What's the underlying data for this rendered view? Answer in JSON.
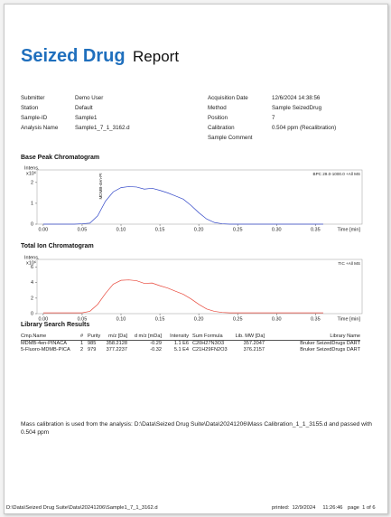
{
  "header": {
    "title_main": "Seized Drug",
    "title_sub": "Report"
  },
  "info": {
    "left": [
      [
        "Submitter",
        "Demo User"
      ],
      [
        "Station",
        "Default"
      ],
      [
        "Sample-ID",
        "Sample1"
      ],
      [
        "Analysis Name",
        "Sample1_7_1_3162.d"
      ]
    ],
    "right": [
      [
        "Acquisition Date",
        "12/6/2024 14:38:56"
      ],
      [
        "Method",
        "Sample SeizedDrug"
      ],
      [
        "Position",
        "7"
      ],
      [
        "Calibration",
        "0.504 ppm (Recalibration)"
      ],
      [
        "Sample Comment"
      ]
    ]
  },
  "chart_data": [
    {
      "type": "line",
      "title": "Base Peak Chromatogram",
      "y_label": "Intens.",
      "y_unit": "x10⁶",
      "x_label": "Time [min]",
      "annotation": "BPC 29.0-1000.0 +All MS",
      "peak_label": "MDMB-4en-PI",
      "color": "#3348c8",
      "x": [
        0,
        0.01,
        0.02,
        0.03,
        0.04,
        0.05,
        0.06,
        0.07,
        0.08,
        0.09,
        0.1,
        0.11,
        0.12,
        0.13,
        0.14,
        0.15,
        0.16,
        0.17,
        0.18,
        0.19,
        0.2,
        0.21,
        0.22,
        0.23,
        0.24,
        0.25,
        0.26,
        0.27,
        0.28,
        0.29,
        0.3,
        0.31,
        0.32,
        0.33,
        0.34,
        0.35,
        0.36
      ],
      "values": [
        0,
        0,
        0,
        0,
        0,
        0.02,
        0.05,
        0.4,
        1.1,
        1.55,
        1.75,
        1.8,
        1.78,
        1.68,
        1.72,
        1.62,
        1.5,
        1.35,
        1.2,
        0.9,
        0.55,
        0.25,
        0.08,
        0.02,
        0,
        0,
        0,
        0,
        0,
        0,
        0,
        0,
        0,
        0,
        0,
        0,
        0
      ],
      "xlim": [
        -0.008,
        0.41
      ],
      "ylim": [
        0,
        2.6
      ],
      "xticks": [
        {
          "value": 0,
          "label": "0.00"
        },
        0.05,
        {
          "value": 0.1,
          "label": "0.10"
        },
        0.15,
        {
          "value": 0.2,
          "label": "0.20"
        },
        0.25,
        {
          "value": 0.3,
          "label": "0.30"
        },
        0.35
      ],
      "yticks": [
        0,
        1,
        2
      ]
    },
    {
      "type": "line",
      "title": "Total Ion Chromatogram",
      "y_label": "Intens.",
      "y_unit": "x10⁶",
      "x_label": "Time [min]",
      "annotation": "TIC +All MS",
      "color": "#e8473a",
      "x": [
        0,
        0.01,
        0.02,
        0.03,
        0.04,
        0.05,
        0.06,
        0.07,
        0.08,
        0.09,
        0.1,
        0.11,
        0.12,
        0.13,
        0.14,
        0.15,
        0.16,
        0.17,
        0.18,
        0.19,
        0.2,
        0.21,
        0.22,
        0.23,
        0.24,
        0.25,
        0.26,
        0.27,
        0.28,
        0.29,
        0.3,
        0.31,
        0.32,
        0.33,
        0.34,
        0.35,
        0.36
      ],
      "values": [
        0.1,
        0.1,
        0.1,
        0.1,
        0.1,
        0.1,
        0.3,
        1.2,
        2.6,
        3.8,
        4.3,
        4.35,
        4.25,
        3.9,
        3.95,
        3.6,
        3.3,
        2.9,
        2.5,
        1.9,
        1.2,
        0.6,
        0.3,
        0.15,
        0.1,
        0.1,
        0.1,
        0.1,
        0.1,
        0.1,
        0.1,
        0.1,
        0.1,
        0.1,
        0.1,
        0.1,
        0.1
      ],
      "xlim": [
        -0.008,
        0.41
      ],
      "ylim": [
        0,
        7
      ],
      "xticks": [
        {
          "value": 0,
          "label": "0.00"
        },
        0.05,
        {
          "value": 0.1,
          "label": "0.10"
        },
        0.15,
        {
          "value": 0.2,
          "label": "0.20"
        },
        0.25,
        {
          "value": 0.3,
          "label": "0.30"
        },
        0.35
      ],
      "yticks": [
        0,
        2,
        4,
        6
      ]
    }
  ],
  "library": {
    "title": "Library Search Results",
    "columns": [
      "Cmp.Name",
      "#",
      "Purity",
      "m/z [Da]",
      "d m/z [mDa]",
      "Intensity",
      "Sum Formula",
      "Lib. MW [Da]",
      "Library Name"
    ],
    "rows": [
      [
        "MDMB-4en-PINACA",
        "1",
        "985",
        "358.2128",
        "-0.29",
        "1.1 E6",
        "C20H27N3O3",
        "357.2047",
        "Bruker SeizedDrugs DART"
      ],
      [
        "5-Fluoro-MDMB-PICA",
        "2",
        "979",
        "377.2237",
        "-0.32",
        "5.1 E4",
        "C21H29FN2O3",
        "376.2157",
        "Bruker SeizedDrugs DART"
      ]
    ]
  },
  "note": "Mass calibration is used from the analysis: D:\\Data\\Seized Drug Suite\\Data\\20241206\\Mass Calibration_1_1_3155.d and passed with 0.504 ppm",
  "footer": {
    "path": "D:\\Data\\Seized Drug Suite\\Data\\20241206\\Sample1_7_1_3162.d",
    "printed": "printed:  12/9/2024     11:26:46",
    "page": "page  1 of 6"
  }
}
